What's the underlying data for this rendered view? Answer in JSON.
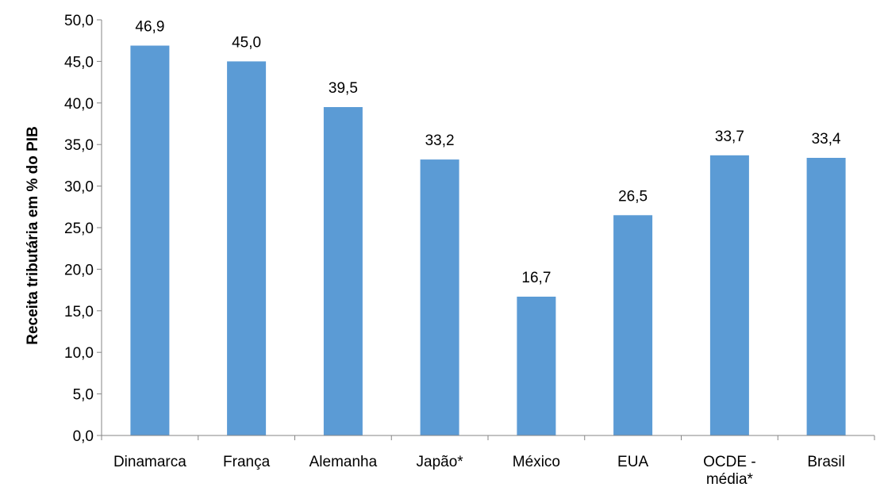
{
  "chart_data": {
    "type": "bar",
    "title": "",
    "xlabel": "",
    "ylabel": "Receita tributária em % do PIB",
    "categories": [
      "Dinamarca",
      "França",
      "Alemanha",
      "Japão*",
      "México",
      "EUA",
      "OCDE - média*",
      "Brasil"
    ],
    "category_lines": [
      [
        "Dinamarca"
      ],
      [
        "França"
      ],
      [
        "Alemanha"
      ],
      [
        "Japão*"
      ],
      [
        "México"
      ],
      [
        "EUA"
      ],
      [
        "OCDE -",
        "média*"
      ],
      [
        "Brasil"
      ]
    ],
    "values": [
      46.9,
      45.0,
      39.5,
      33.2,
      16.7,
      26.5,
      33.7,
      33.4
    ],
    "value_labels": [
      "46,9",
      "45,0",
      "39,5",
      "33,2",
      "16,7",
      "26,5",
      "33,7",
      "33,4"
    ],
    "ylim": [
      0,
      50
    ],
    "yticks": [
      0,
      5,
      10,
      15,
      20,
      25,
      30,
      35,
      40,
      45,
      50
    ],
    "ytick_labels": [
      "0,0",
      "5,0",
      "10,0",
      "15,0",
      "20,0",
      "25,0",
      "30,0",
      "35,0",
      "40,0",
      "45,0",
      "50,0"
    ],
    "bar_color": "#5B9BD5",
    "axis_color": "#868686",
    "grid": false,
    "legend": "none"
  }
}
